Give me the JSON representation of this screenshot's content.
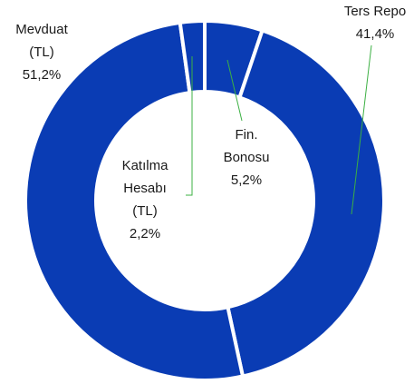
{
  "chart_data": {
    "type": "donut",
    "categories": [
      "Fin. Bonosu",
      "Ters Repo",
      "Mevduat (TL)",
      "Katılma Hesabı (TL)"
    ],
    "values": [
      5.2,
      41.4,
      51.2,
      2.2
    ],
    "value_labels": [
      "5,2%",
      "41,4%",
      "51,2%",
      "2,2%"
    ],
    "color": "#0a3cb4"
  }
}
